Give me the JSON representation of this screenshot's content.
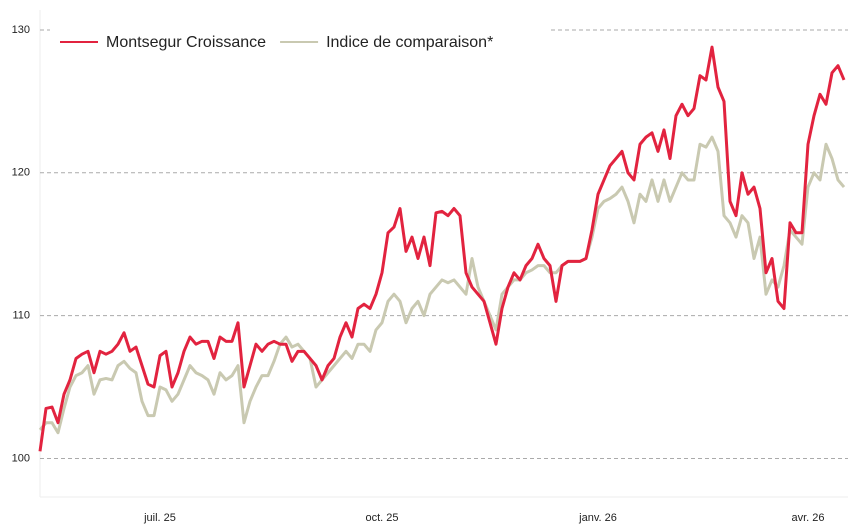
{
  "chart_data": {
    "type": "line",
    "categories": [
      null,
      null,
      null,
      null,
      null,
      null,
      null,
      null,
      null,
      null,
      null,
      null,
      null,
      null,
      null,
      null,
      null,
      null,
      null,
      null,
      "juil. 25",
      null,
      null,
      null,
      null,
      null,
      null,
      null,
      null,
      null,
      null,
      null,
      null,
      null,
      null,
      null,
      null,
      null,
      null,
      null,
      null,
      null,
      null,
      null,
      null,
      null,
      null,
      null,
      null,
      null,
      null,
      null,
      null,
      null,
      null,
      null,
      null,
      "oct. 25",
      null,
      null,
      null,
      null,
      null,
      null,
      null,
      null,
      null,
      null,
      null,
      null,
      null,
      null,
      null,
      null,
      null,
      null,
      null,
      null,
      null,
      null,
      null,
      null,
      null,
      null,
      null,
      null,
      null,
      null,
      null,
      null,
      null,
      null,
      null,
      "janv. 26",
      null,
      null,
      null,
      null,
      null,
      null,
      null,
      null,
      null,
      null,
      null,
      null,
      null,
      null,
      null,
      null,
      null,
      null,
      null,
      null,
      null,
      null,
      null,
      null,
      null,
      null,
      null,
      null,
      null,
      null,
      null,
      null,
      null,
      null,
      "avr. 26",
      null,
      null,
      null,
      null,
      null,
      null
    ],
    "series": [
      {
        "name": "Indice de comparaison*",
        "color": "#c9c9b1",
        "values": [
          102.0,
          102.5,
          102.5,
          101.8,
          103.5,
          105.0,
          105.8,
          106.0,
          106.5,
          104.5,
          105.5,
          105.6,
          105.5,
          106.5,
          106.8,
          106.3,
          106.0,
          104.0,
          103.0,
          103.0,
          105.0,
          104.8,
          104.0,
          104.5,
          105.5,
          106.5,
          106.0,
          105.8,
          105.5,
          104.5,
          106.0,
          105.5,
          105.8,
          106.5,
          102.5,
          104.0,
          105.0,
          105.8,
          105.8,
          106.8,
          108.0,
          108.5,
          107.8,
          108.0,
          107.5,
          107.0,
          105.0,
          105.5,
          106.0,
          106.5,
          107.0,
          107.5,
          107.0,
          108.0,
          108.0,
          107.5,
          109.0,
          109.5,
          111.0,
          111.5,
          111.0,
          109.5,
          110.5,
          111.0,
          110.0,
          111.5,
          112.0,
          112.5,
          112.3,
          112.5,
          112.0,
          111.5,
          114.0,
          112.0,
          111.0,
          110.0,
          109.0,
          111.5,
          112.0,
          112.5,
          112.5,
          113.0,
          113.2,
          113.5,
          113.5,
          113.0,
          113.0,
          113.5,
          113.8,
          113.8,
          113.8,
          114.0,
          115.5,
          117.5,
          118.0,
          118.2,
          118.5,
          119.0,
          118.0,
          116.5,
          118.5,
          118.0,
          119.5,
          118.0,
          119.5,
          118.0,
          119.0,
          120.0,
          119.5,
          119.5,
          122.0,
          121.8,
          122.5,
          121.5,
          117.0,
          116.5,
          115.5,
          117.0,
          116.5,
          114.0,
          115.5,
          111.5,
          112.5,
          112.0,
          113.5,
          116.0,
          115.5,
          115.0,
          119.0,
          120.0,
          119.5,
          122.0,
          121.0,
          119.5,
          119.0
        ]
      },
      {
        "name": "Montsegur Croissance",
        "color": "#e2233f",
        "values": [
          100.5,
          103.5,
          103.6,
          102.5,
          104.5,
          105.5,
          107.0,
          107.3,
          107.5,
          106.0,
          107.5,
          107.3,
          107.5,
          108.0,
          108.8,
          107.5,
          107.8,
          106.5,
          105.2,
          105.0,
          107.2,
          107.5,
          105.0,
          106.0,
          107.5,
          108.5,
          108.0,
          108.2,
          108.2,
          107.0,
          108.5,
          108.2,
          108.2,
          109.5,
          105.0,
          106.5,
          108.0,
          107.5,
          108.0,
          108.2,
          108.0,
          108.0,
          106.8,
          107.5,
          107.5,
          107.0,
          106.5,
          105.5,
          106.5,
          107.0,
          108.5,
          109.5,
          108.5,
          110.5,
          110.8,
          110.5,
          111.5,
          113.0,
          115.8,
          116.2,
          117.5,
          114.5,
          115.5,
          114.0,
          115.5,
          113.5,
          117.2,
          117.3,
          117.0,
          117.5,
          117.0,
          113.0,
          112.0,
          111.5,
          111.0,
          109.5,
          108.0,
          110.5,
          112.0,
          113.0,
          112.5,
          113.5,
          114.0,
          115.0,
          114.0,
          113.5,
          111.0,
          113.5,
          113.8,
          113.8,
          113.8,
          114.0,
          116.0,
          118.5,
          119.5,
          120.5,
          121.0,
          121.5,
          120.0,
          119.5,
          122.0,
          122.5,
          122.8,
          121.5,
          123.0,
          121.0,
          124.0,
          124.8,
          124.0,
          124.5,
          126.8,
          126.5,
          128.8,
          126.0,
          125.0,
          118.0,
          117.0,
          120.0,
          118.5,
          119.0,
          117.5,
          113.0,
          114.0,
          111.0,
          110.5,
          116.5,
          115.8,
          115.8,
          122.0,
          124.0,
          125.5,
          124.8,
          127.0,
          127.5,
          126.5
        ]
      }
    ],
    "ylim": [
      97.3,
      131.4
    ],
    "yticks": [
      100,
      110,
      120,
      130
    ],
    "grid": true,
    "legend": "top-left"
  }
}
